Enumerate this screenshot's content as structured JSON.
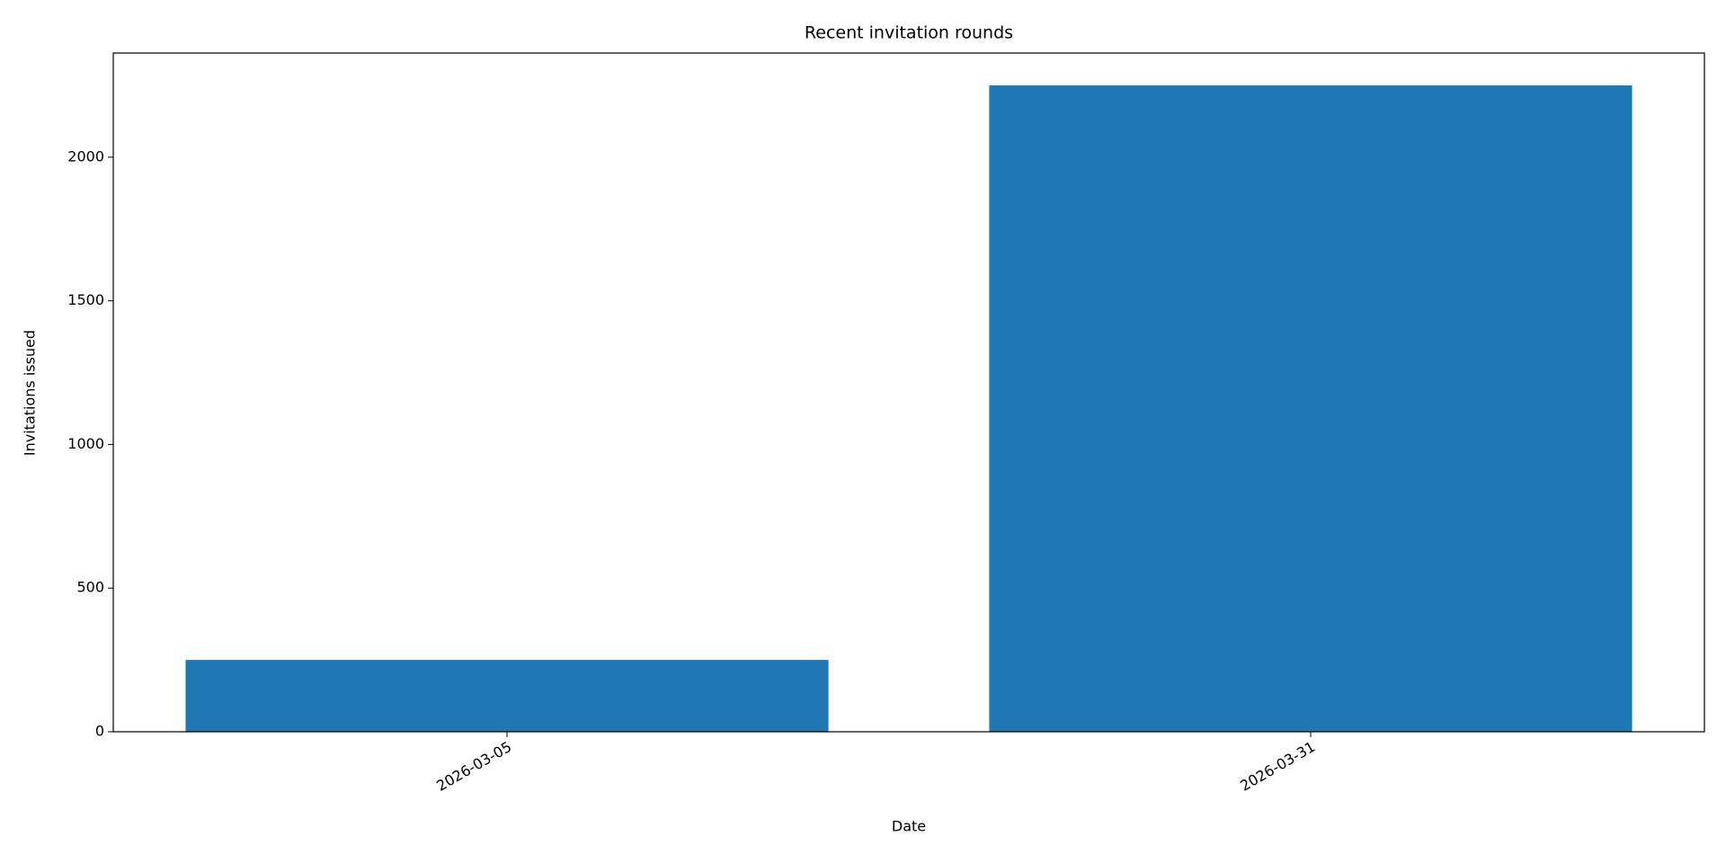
{
  "chart_data": {
    "type": "bar",
    "title": "Recent invitation rounds",
    "x_label": "Date",
    "y_label": "Invitations issued",
    "categories": [
      "2026-03-05",
      "2026-03-31"
    ],
    "values": [
      250,
      2250
    ],
    "color": "#1f77b4",
    "ylim": [
      0,
      2362.5
    ],
    "yticks": [
      0,
      500,
      1000,
      1500,
      2000
    ],
    "grid": false
  }
}
